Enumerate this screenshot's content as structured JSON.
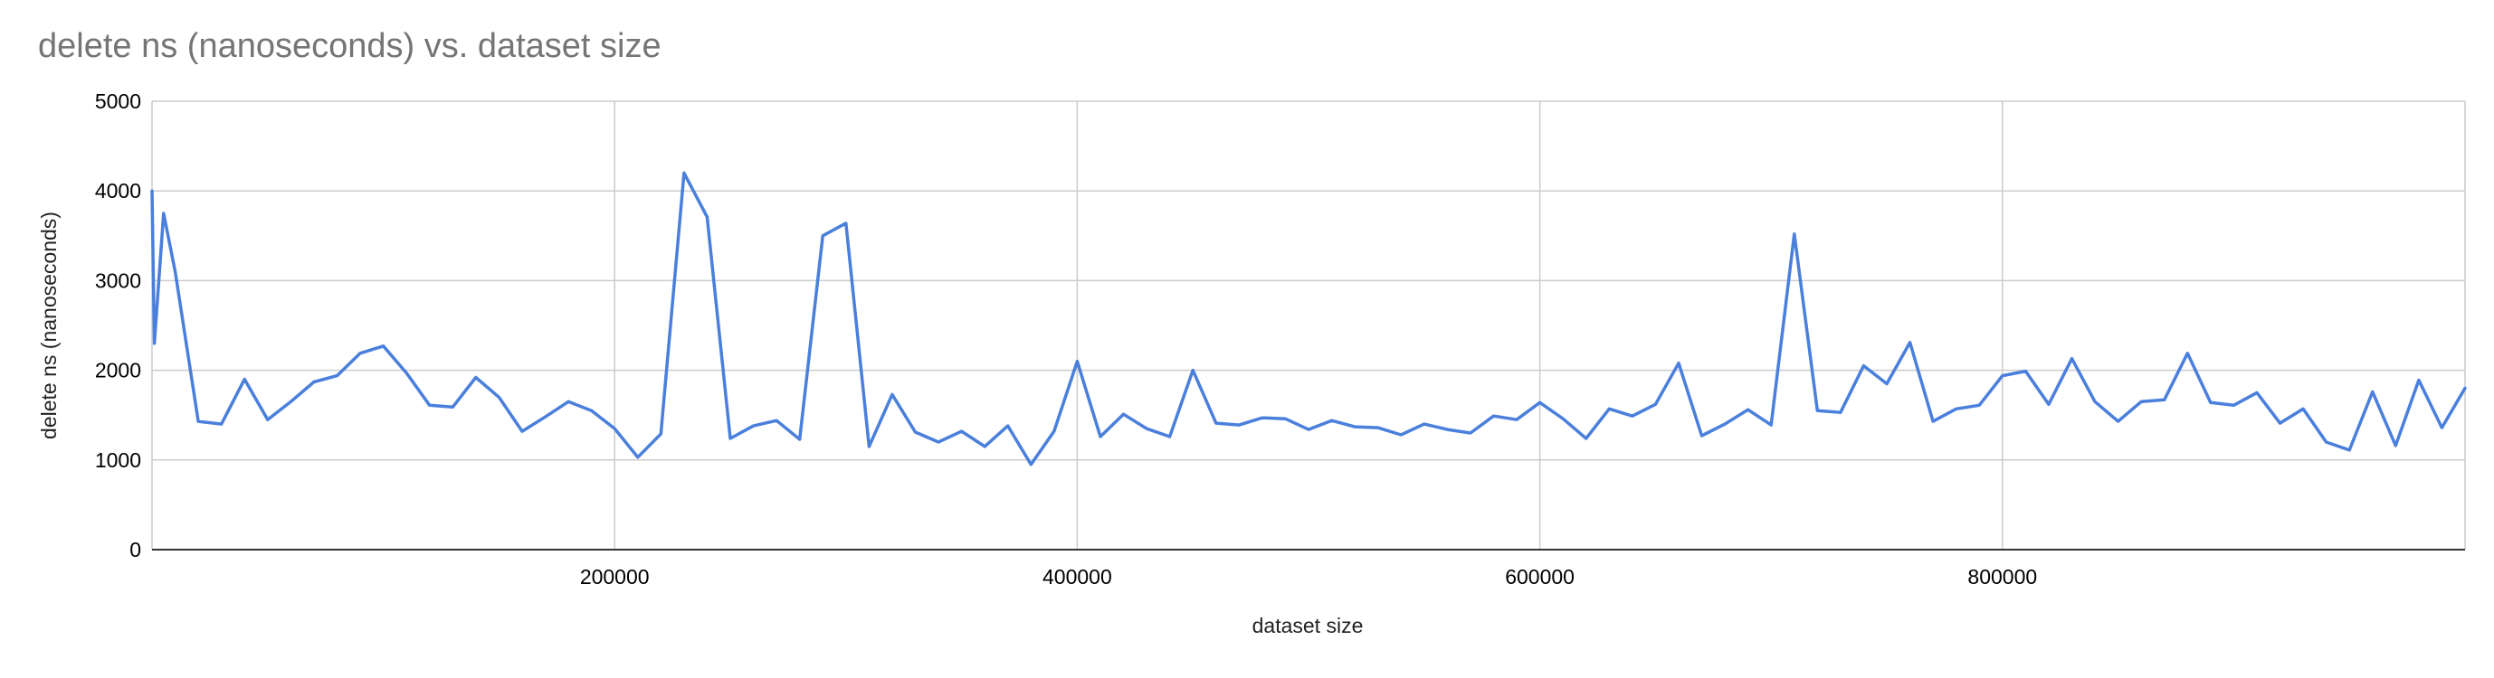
{
  "chart_data": {
    "type": "line",
    "title": "delete ns (nanoseconds) vs. dataset size",
    "xlabel": "dataset size",
    "ylabel": "delete ns (nanoseconds)",
    "xlim": [
      0,
      1000000
    ],
    "ylim": [
      0,
      5000
    ],
    "x_ticks": [
      200000,
      400000,
      600000,
      800000
    ],
    "y_ticks": [
      0,
      1000,
      2000,
      3000,
      4000,
      5000
    ],
    "grid": true,
    "legend": "none",
    "line_color": "#4a7fdc",
    "series": [
      {
        "x": [
          0,
          1000,
          5000,
          10000,
          20000,
          30000,
          40000,
          50000,
          60000,
          70000,
          80000,
          90000,
          100000,
          110000,
          120000,
          130000,
          140000,
          150000,
          160000,
          170000,
          180000,
          190000,
          200000,
          210000,
          220000,
          230000,
          240000,
          250000,
          260000,
          270000,
          280000,
          290000,
          300000,
          310000,
          320000,
          330000,
          340000,
          350000,
          360000,
          370000,
          380000,
          390000,
          400000,
          410000,
          420000,
          430000,
          440000,
          450000,
          460000,
          470000,
          480000,
          490000,
          500000,
          510000,
          520000,
          530000,
          540000,
          550000,
          560000,
          570000,
          580000,
          590000,
          600000,
          610000,
          620000,
          630000,
          640000,
          650000,
          660000,
          670000,
          680000,
          690000,
          700000,
          710000,
          720000,
          730000,
          740000,
          750000,
          760000,
          770000,
          780000,
          790000,
          800000,
          810000,
          820000,
          830000,
          840000,
          850000,
          860000,
          870000,
          880000,
          890000,
          900000,
          910000,
          920000,
          930000,
          940000,
          950000,
          960000,
          970000,
          980000,
          990000,
          1000000
        ],
        "values": [
          4000,
          2300,
          3750,
          3100,
          1430,
          1400,
          1900,
          1450,
          1650,
          1870,
          1940,
          2190,
          2270,
          1970,
          1610,
          1590,
          1920,
          1700,
          1320,
          1480,
          1650,
          1550,
          1350,
          1030,
          1290,
          4200,
          3710,
          1240,
          1380,
          1440,
          1230,
          3500,
          3640,
          1150,
          1730,
          1310,
          1200,
          1320,
          1150,
          1380,
          950,
          1320,
          2100,
          1260,
          1510,
          1350,
          1260,
          2000,
          1410,
          1390,
          1470,
          1460,
          1340,
          1440,
          1370,
          1360,
          1280,
          1400,
          1340,
          1300,
          1490,
          1450,
          1640,
          1460,
          1240,
          1570,
          1490,
          1620,
          2080,
          1270,
          1400,
          1560,
          1390,
          3520,
          1550,
          1530,
          2050,
          1850,
          2310,
          1430,
          1570,
          1610,
          1940,
          1990,
          1620,
          2130,
          1650,
          1430,
          1650,
          1670,
          2190,
          1640,
          1610,
          1750,
          1410,
          1570,
          1200,
          1110,
          1760,
          1160,
          1890,
          1360,
          1800
        ]
      }
    ]
  }
}
